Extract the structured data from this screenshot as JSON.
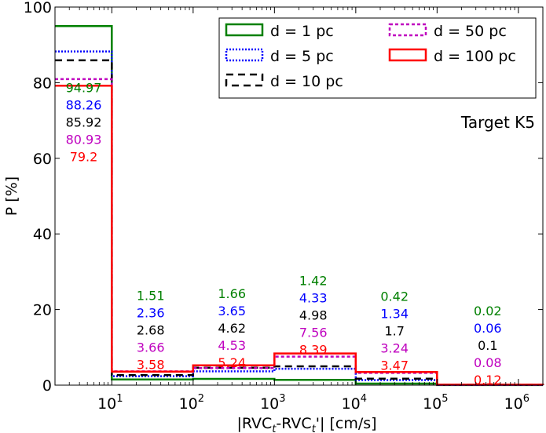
{
  "chart_data": {
    "type": "step-histogram",
    "title": "",
    "annotation": "Target K5",
    "xlabel_parts": {
      "a": "|RVC",
      "sub1": "t",
      "b": "-RVC",
      "sub2": "t",
      "c": "'| [cm/s]"
    },
    "ylabel": "P [%]",
    "xscale": "log",
    "xlim": [
      2,
      2000000
    ],
    "ylim": [
      0,
      100
    ],
    "yticks": [
      0,
      20,
      40,
      60,
      80,
      100
    ],
    "xticks": [
      {
        "base": "10",
        "exp": "1",
        "value": 10
      },
      {
        "base": "10",
        "exp": "2",
        "value": 100
      },
      {
        "base": "10",
        "exp": "3",
        "value": 1000
      },
      {
        "base": "10",
        "exp": "4",
        "value": 10000
      },
      {
        "base": "10",
        "exp": "5",
        "value": 100000
      },
      {
        "base": "10",
        "exp": "6",
        "value": 1000000
      }
    ],
    "bins": [
      {
        "left": 2,
        "right": 10,
        "label_x": 4.5,
        "label_y": 77.5
      },
      {
        "left": 10,
        "right": 100,
        "label_x": 30,
        "label_y": 22.5
      },
      {
        "left": 100,
        "right": 1000,
        "label_x": 300,
        "label_y": 23
      },
      {
        "left": 1000,
        "right": 10000,
        "label_x": 3000,
        "label_y": 26.5
      },
      {
        "left": 10000,
        "right": 100000,
        "label_x": 30000,
        "label_y": 22.3
      },
      {
        "left": 100000,
        "right": 2000000,
        "label_x": 420000,
        "label_y": 18.5
      }
    ],
    "series": [
      {
        "name": "d = 1 pc",
        "color": "#008000",
        "style": "solid",
        "values": [
          94.97,
          1.51,
          1.66,
          1.42,
          0.42,
          0.02
        ],
        "labels": [
          "94.97",
          "1.51",
          "1.66",
          "1.42",
          "0.42",
          "0.02"
        ]
      },
      {
        "name": "d = 5 pc",
        "color": "#0000ff",
        "style": "dotted",
        "values": [
          88.26,
          2.36,
          3.65,
          4.33,
          1.34,
          0.06
        ],
        "labels": [
          "88.26",
          "2.36",
          "3.65",
          "4.33",
          "1.34",
          "0.06"
        ]
      },
      {
        "name": "d = 10 pc",
        "color": "#000000",
        "style": "dashed",
        "values": [
          85.92,
          2.68,
          4.62,
          4.98,
          1.7,
          0.1
        ],
        "labels": [
          "85.92",
          "2.68",
          "4.62",
          "4.98",
          "1.7",
          "0.1"
        ]
      },
      {
        "name": "d = 50 pc",
        "color": "#bf00bf",
        "style": "dashdense",
        "values": [
          80.93,
          3.66,
          4.53,
          7.56,
          3.24,
          0.08
        ],
        "labels": [
          "80.93",
          "3.66",
          "4.53",
          "7.56",
          "3.24",
          "0.08"
        ]
      },
      {
        "name": "d = 100 pc",
        "color": "#ff0000",
        "style": "solid",
        "values": [
          79.2,
          3.58,
          5.24,
          8.39,
          3.47,
          0.12
        ],
        "labels": [
          "79.2",
          "3.58",
          "5.24",
          "8.39",
          "3.47",
          "0.12"
        ]
      }
    ],
    "legend_order": [
      0,
      3,
      1,
      4,
      2
    ],
    "legend_placement": "top-right"
  }
}
